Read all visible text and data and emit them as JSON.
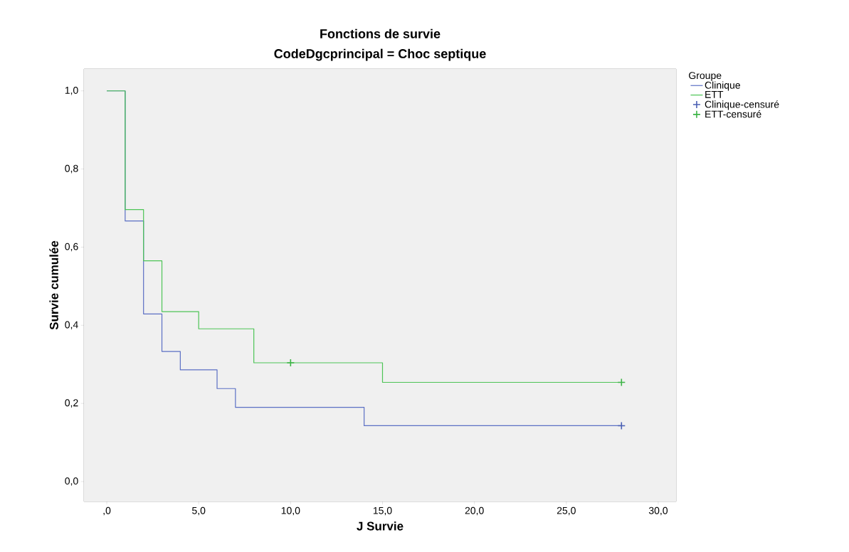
{
  "chart_data": {
    "type": "step",
    "title": "Fonctions de survie",
    "subtitle": "CodeDgcprincipal = Choc septique",
    "xlabel": "J Survie",
    "ylabel": "Survie cumulée",
    "legend_title": "Groupe",
    "legend": "right",
    "xlim": [
      -1.24,
      30.97
    ],
    "ylim": [
      -0.051,
      1.056
    ],
    "xticks": [
      {
        "value": 0,
        "label": ",0"
      },
      {
        "value": 5,
        "label": "5,0"
      },
      {
        "value": 10,
        "label": "10,0"
      },
      {
        "value": 15,
        "label": "15,0"
      },
      {
        "value": 20,
        "label": "20,0"
      },
      {
        "value": 25,
        "label": "25,0"
      },
      {
        "value": 30,
        "label": "30,0"
      }
    ],
    "yticks": [
      {
        "value": 0,
        "label": "0,0"
      },
      {
        "value": 0.2,
        "label": "0,2"
      },
      {
        "value": 0.4,
        "label": "0,4"
      },
      {
        "value": 0.6,
        "label": "0,6"
      },
      {
        "value": 0.8,
        "label": "0,8"
      },
      {
        "value": 1,
        "label": "1,0"
      }
    ],
    "series": [
      {
        "name": "Clinique",
        "color": "#5b6fc4",
        "x": [
          0,
          1,
          2,
          3,
          4,
          6,
          7,
          14,
          28
        ],
        "values": [
          1,
          0.667,
          0.429,
          0.333,
          0.286,
          0.238,
          0.19,
          0.143,
          0.143
        ]
      },
      {
        "name": "ETT",
        "color": "#4dc456",
        "x": [
          0,
          1,
          2,
          3,
          5,
          8,
          15,
          28
        ],
        "values": [
          1,
          0.696,
          0.565,
          0.435,
          0.391,
          0.304,
          0.254,
          0.254
        ]
      },
      {
        "name": "Clinique-censuré",
        "type": "scatter",
        "marker": "cross",
        "color": "#4a5fb4",
        "x": [
          28
        ],
        "values": [
          0.143
        ]
      },
      {
        "name": "ETT-censuré",
        "type": "scatter",
        "marker": "cross",
        "color": "#3cb446",
        "x": [
          10,
          28
        ],
        "values": [
          0.304,
          0.254
        ]
      }
    ]
  }
}
